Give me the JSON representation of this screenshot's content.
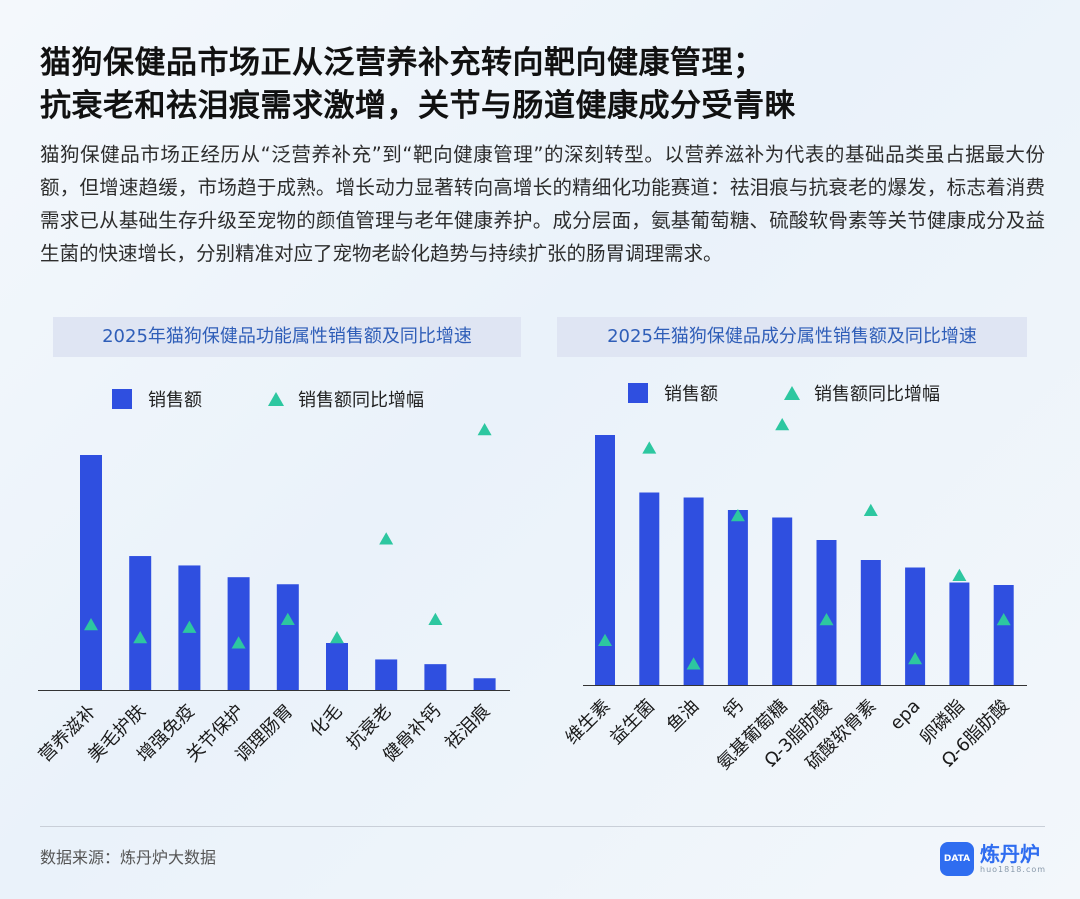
{
  "title_line1": "猫狗保健品市场正从泛营养补充转向靶向健康管理；",
  "title_line2": "抗衰老和祛泪痕需求激增，关节与肠道健康成分受青睐",
  "description": "猫狗保健品市场正经历从“泛营养补充”到“靶向健康管理”的深刻转型。以营养滋补为代表的基础品类虽占据最大份额，但增速趋缓，市场趋于成熟。增长动力显著转向高增长的精细化功能赛道：祛泪痕与抗衰老的爆发，标志着消费需求已从基础生存升级至宠物的颜值管理与老年健康养护。成分层面，氨基葡萄糖、硫酸软骨素等关节健康成分及益生菌的快速增长，分别精准对应了宠物老龄化趋势与持续扩张的肠胃调理需求。",
  "legend": {
    "bar": "销售额",
    "marker": "销售额同比增幅"
  },
  "colors": {
    "bar": "#2f4fe0",
    "marker": "#2dc7a0",
    "title_box": "#dfe5f3",
    "title_text": "#2f5eb8"
  },
  "chart_data": [
    {
      "type": "bar",
      "title": "2025年猫狗保健品功能属性销售额及同比增速",
      "categories": [
        "营养滋补",
        "美毛护肤",
        "增强免疫",
        "关节保护",
        "调理肠胃",
        "化毛",
        "抗衰老",
        "健骨补钙",
        "祛泪痕"
      ],
      "series": [
        {
          "name": "销售额",
          "values": [
            100,
            57,
            53,
            48,
            45,
            20,
            13,
            11,
            5
          ]
        },
        {
          "name": "销售额同比增幅",
          "values": [
            25,
            20,
            24,
            18,
            27,
            20,
            58,
            27,
            100
          ]
        }
      ],
      "ylim": [
        0,
        105
      ]
    },
    {
      "type": "bar",
      "title": "2025年猫狗保健品成分属性销售额及同比增速",
      "categories": [
        "维生素",
        "益生菌",
        "鱼油",
        "钙",
        "氨基葡萄糖",
        "Ω-3脂肪酸",
        "硫酸软骨素",
        "epa",
        "卵磷脂",
        "Ω-6脂肪酸"
      ],
      "series": [
        {
          "name": "销售额",
          "values": [
            100,
            77,
            75,
            70,
            67,
            58,
            50,
            47,
            41,
            40
          ]
        },
        {
          "name": "销售额同比增幅",
          "values": [
            17,
            91,
            8,
            65,
            100,
            25,
            67,
            10,
            42,
            25
          ]
        }
      ],
      "ylim": [
        0,
        110
      ]
    }
  ],
  "source": "数据来源：炼丹炉大数据",
  "logo": {
    "name": "炼丹炉",
    "url": "huo1818.com",
    "mark": "DATA"
  }
}
